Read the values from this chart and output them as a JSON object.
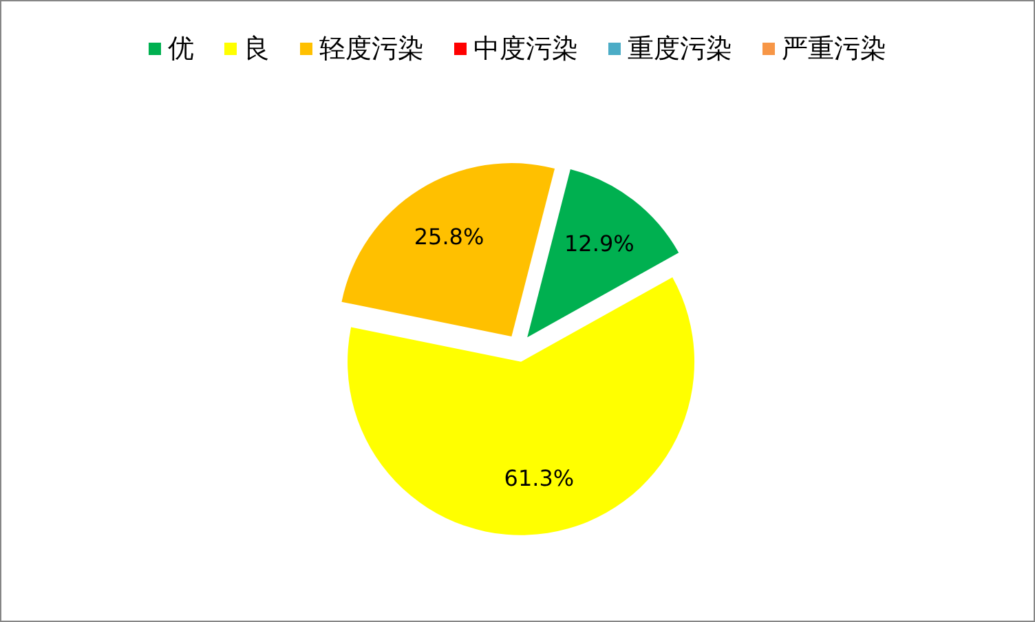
{
  "chart_data": {
    "type": "pie",
    "categories": [
      "优",
      "良",
      "轻度污染",
      "中度污染",
      "重度污染",
      "严重污染"
    ],
    "values": [
      12.9,
      61.3,
      25.8,
      0,
      0,
      0
    ],
    "colors": [
      "#00b050",
      "#ffff00",
      "#ffc000",
      "#ff0000",
      "#4bacc6",
      "#f79646"
    ],
    "value_labels": [
      "12.9%",
      "61.3%",
      "25.8%",
      null,
      null,
      null
    ],
    "legend": "top"
  }
}
